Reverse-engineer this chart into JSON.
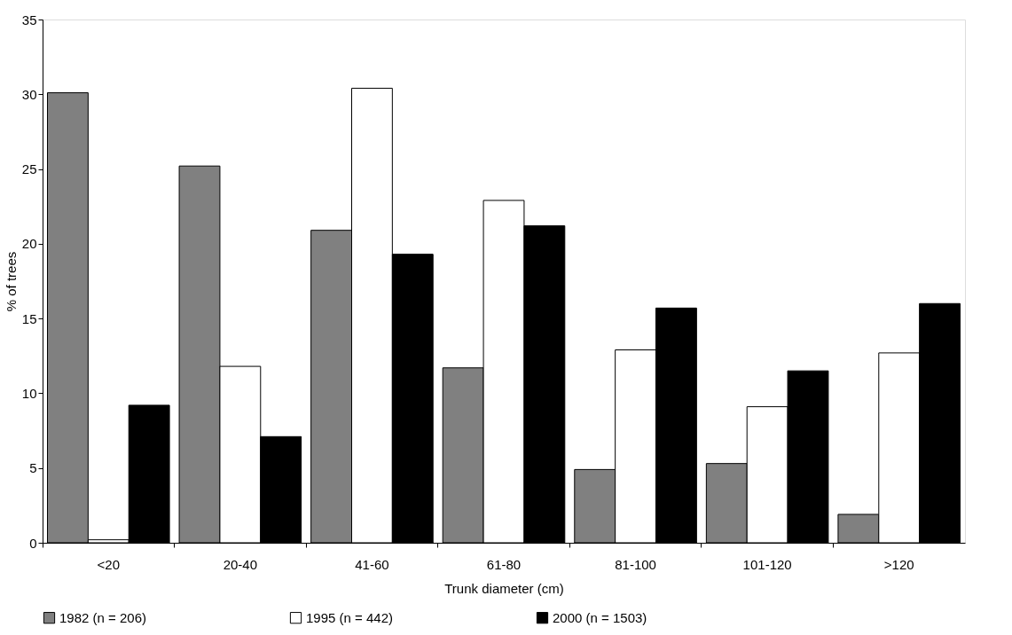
{
  "chart_data": {
    "type": "bar",
    "xlabel": "Trunk diameter (cm)",
    "ylabel": "% of trees",
    "categories": [
      "<20",
      "20-40",
      "41-60",
      "61-80",
      "81-100",
      "101-120",
      ">120"
    ],
    "series": [
      {
        "name": "1982 (n = 206)",
        "color": "#808080",
        "values": [
          30.1,
          25.2,
          20.9,
          11.7,
          4.9,
          5.3,
          1.9
        ]
      },
      {
        "name": "1995 (n = 442)",
        "color": "#ffffff",
        "values": [
          0.2,
          11.8,
          30.4,
          22.9,
          12.9,
          9.1,
          12.7
        ]
      },
      {
        "name": "2000 (n = 1503)",
        "color": "#000000",
        "values": [
          9.2,
          7.1,
          19.3,
          21.2,
          15.7,
          11.5,
          16.0
        ]
      }
    ],
    "ylim": [
      0,
      35
    ],
    "yticks": [
      0,
      5,
      10,
      15,
      20,
      25,
      30,
      35
    ],
    "grid": false,
    "legend": "bottom"
  }
}
